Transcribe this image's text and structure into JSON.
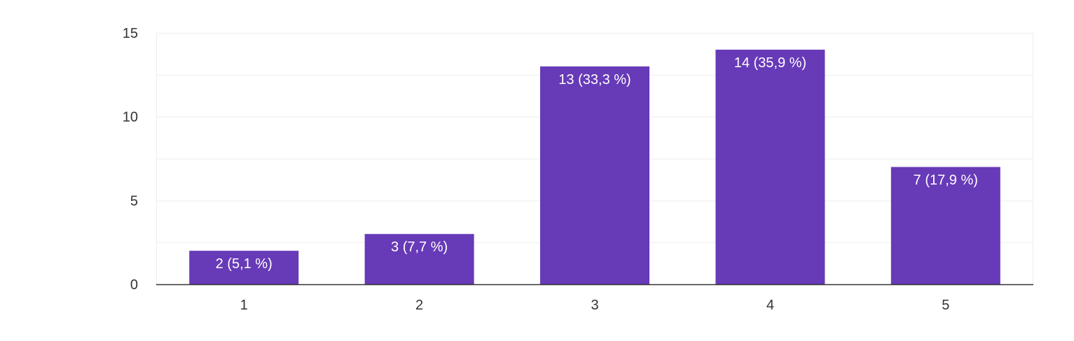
{
  "chart_data": {
    "type": "bar",
    "title": "",
    "xlabel": "",
    "ylabel": "",
    "categories": [
      "1",
      "2",
      "3",
      "4",
      "5"
    ],
    "values": [
      2,
      3,
      13,
      14,
      7
    ],
    "data_labels": [
      "2 (5,1 %)",
      "3 (7,7 %)",
      "13 (33,3 %)",
      "14 (35,9 %)",
      "7 (17,9 %)"
    ],
    "ylim": [
      0,
      15
    ],
    "yticks": [
      0,
      5,
      10,
      15
    ],
    "ytick_labels": [
      "0",
      "5",
      "10",
      "15"
    ],
    "minor_grid_step": 2.5,
    "grid": true,
    "legend": "none",
    "colors": {
      "bar": "#673AB7",
      "grid": "#EEEEEE",
      "axis": "#333333",
      "label_text": "#FFFFFF",
      "tick_text": "#333333"
    }
  }
}
